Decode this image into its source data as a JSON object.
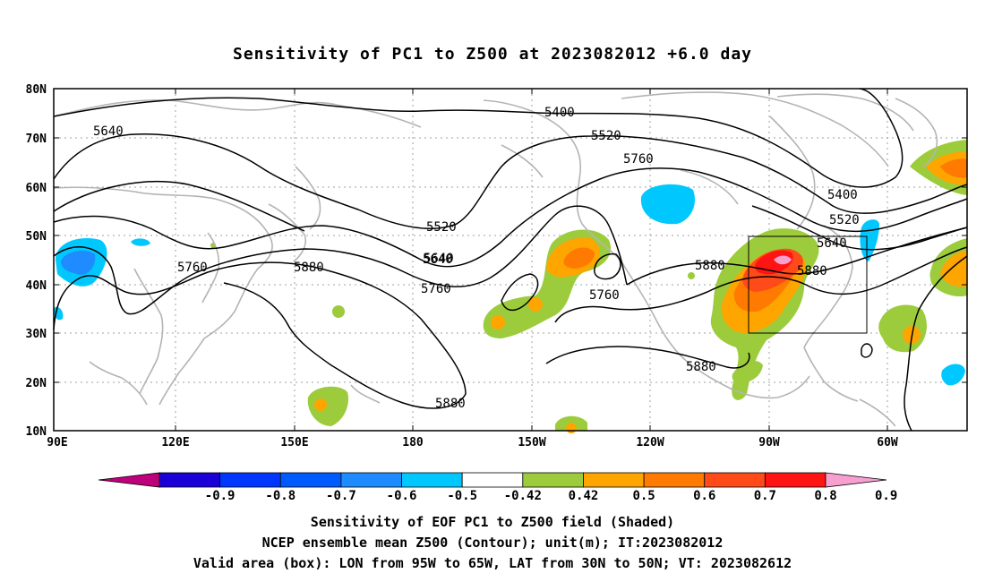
{
  "title": "Sensitivity of PC1 to Z500 at 2023082012 +6.0 day",
  "footer": {
    "line1": "Sensitivity of EOF PC1 to Z500 field (Shaded)",
    "line2": "NCEP ensemble mean Z500 (Contour); unit(m); IT:2023082012",
    "line3": "Valid area (box): LON from 95W to 65W, LAT from 30N to 50N; VT: 2023082612"
  },
  "lat_labels": [
    "80N",
    "70N",
    "60N",
    "50N",
    "40N",
    "30N",
    "20N",
    "10N"
  ],
  "lon_labels": [
    "90E",
    "120E",
    "150E",
    "180",
    "150W",
    "120W",
    "90W",
    "60W"
  ],
  "colorbar": {
    "tick_labels": [
      "-0.9",
      "-0.8",
      "-0.7",
      "-0.6",
      "-0.5",
      "-0.42",
      "0.42",
      "0.5",
      "0.6",
      "0.7",
      "0.8",
      "0.9"
    ],
    "colors": [
      "#c0007a",
      "#1a00d6",
      "#0037ff",
      "#005bff",
      "#1e8cff",
      "#00c8ff",
      "#ffffff",
      "#9ccc3c",
      "#ffa500",
      "#ff7a00",
      "#ff4a1a",
      "#ff1414",
      "#f7a0d0"
    ]
  },
  "contour_labels": [
    "5400",
    "5520",
    "5640",
    "5760",
    "5880",
    "5640",
    "5520",
    "5400",
    "5640",
    "5760",
    "5880",
    "5880",
    "5880",
    "5520",
    "5640",
    "5760",
    "5880",
    "5760"
  ],
  "colors": {
    "coastline": "#b4b4b4",
    "contour": "#000000",
    "grid": "#a0a0a0"
  }
}
